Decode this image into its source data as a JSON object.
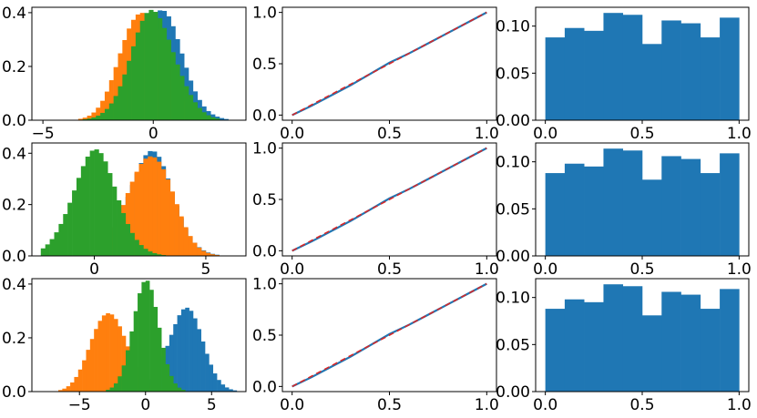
{
  "colors": {
    "blue": "#1f77b4",
    "orange": "#ff7f0e",
    "green": "#2ca02c",
    "red": "#d62728"
  },
  "chart_data": [
    {
      "type": "histogram",
      "row": 0,
      "col": 0,
      "xlim": [
        -5.5,
        4.2
      ],
      "ylim": [
        0,
        0.42
      ],
      "xticks": [
        -5,
        0
      ],
      "xticklabels": [
        "−5",
        "0"
      ],
      "yticks": [
        0,
        0.2,
        0.4
      ],
      "yticklabels": [
        "0.0",
        "0.2",
        "0.4"
      ],
      "bin_width": 0.2,
      "series": [
        {
          "color": "blue",
          "dist": "normal",
          "mean": 0.3,
          "sd": 1.0,
          "range": [
            -2.8,
            3.6
          ]
        },
        {
          "color": "orange",
          "dist": "normal",
          "mean": -0.5,
          "sd": 0.95,
          "range": [
            -3.6,
            2.4
          ]
        },
        {
          "color": "green",
          "dist": "normal",
          "mean": 0.0,
          "sd": 1.0,
          "range": [
            -3.2,
            3.0
          ]
        }
      ]
    },
    {
      "type": "line",
      "row": 0,
      "col": 1,
      "xlim": [
        -0.05,
        1.05
      ],
      "ylim": [
        -0.05,
        1.05
      ],
      "xticks": [
        0,
        0.5,
        1.0
      ],
      "xticklabels": [
        "0.0",
        "0.5",
        "1.0"
      ],
      "yticks": [
        0,
        0.5,
        1.0
      ],
      "yticklabels": [
        "0.0",
        "0.5",
        "1.0"
      ],
      "series": [
        {
          "color": "blue",
          "x": [
            0,
            0.1,
            0.2,
            0.3,
            0.4,
            0.5,
            0.6,
            0.7,
            0.8,
            0.9,
            1.0
          ],
          "y": [
            0,
            0.09,
            0.19,
            0.29,
            0.4,
            0.51,
            0.6,
            0.7,
            0.8,
            0.9,
            1.0
          ]
        },
        {
          "color": "red",
          "dashed": true,
          "x": [
            0,
            1
          ],
          "y": [
            0,
            1
          ]
        }
      ]
    },
    {
      "type": "bar",
      "row": 0,
      "col": 2,
      "xlim": [
        -0.05,
        1.05
      ],
      "ylim": [
        0,
        0.12
      ],
      "xticks": [
        0,
        0.5,
        1.0
      ],
      "xticklabels": [
        "0.0",
        "0.5",
        "1.0"
      ],
      "yticks": [
        0,
        0.05,
        0.1
      ],
      "yticklabels": [
        "0.00",
        "0.05",
        "0.10"
      ],
      "bin_edges": [
        0,
        0.1,
        0.2,
        0.3,
        0.4,
        0.5,
        0.6,
        0.7,
        0.8,
        0.9,
        1.0
      ],
      "values": [
        0.088,
        0.098,
        0.095,
        0.114,
        0.112,
        0.081,
        0.106,
        0.103,
        0.088,
        0.109
      ]
    },
    {
      "type": "histogram",
      "row": 1,
      "col": 0,
      "xlim": [
        -2.8,
        6.8
      ],
      "ylim": [
        0,
        0.44
      ],
      "xticks": [
        0,
        5
      ],
      "xticklabels": [
        "0",
        "5"
      ],
      "yticks": [
        0,
        0.2,
        0.4
      ],
      "yticklabels": [
        "0.0",
        "0.2",
        "0.4"
      ],
      "bin_width": 0.2,
      "series": [
        {
          "color": "blue",
          "dist": "normal",
          "mean": 2.5,
          "sd": 1.0,
          "range": [
            -0.6,
            5.8
          ]
        },
        {
          "color": "orange",
          "dist": "normal",
          "mean": 2.5,
          "sd": 0.98,
          "range": [
            -0.8,
            6.2
          ]
        },
        {
          "color": "green",
          "dist": "normal",
          "mean": 0.0,
          "sd": 1.0,
          "range": [
            -2.4,
            3.4
          ]
        }
      ]
    },
    {
      "type": "line",
      "row": 1,
      "col": 1,
      "xlim": [
        -0.05,
        1.05
      ],
      "ylim": [
        -0.05,
        1.05
      ],
      "xticks": [
        0,
        0.5,
        1.0
      ],
      "xticklabels": [
        "0.0",
        "0.5",
        "1.0"
      ],
      "yticks": [
        0,
        0.5,
        1.0
      ],
      "yticklabels": [
        "0.0",
        "0.5",
        "1.0"
      ],
      "series": [
        {
          "color": "blue",
          "x": [
            0,
            0.1,
            0.2,
            0.3,
            0.4,
            0.5,
            0.6,
            0.7,
            0.8,
            0.9,
            1.0
          ],
          "y": [
            0,
            0.09,
            0.19,
            0.29,
            0.4,
            0.51,
            0.6,
            0.7,
            0.8,
            0.9,
            1.0
          ]
        },
        {
          "color": "red",
          "dashed": true,
          "x": [
            0,
            1
          ],
          "y": [
            0,
            1
          ]
        }
      ]
    },
    {
      "type": "bar",
      "row": 1,
      "col": 2,
      "xlim": [
        -0.05,
        1.05
      ],
      "ylim": [
        0,
        0.12
      ],
      "xticks": [
        0,
        0.5,
        1.0
      ],
      "xticklabels": [
        "0.0",
        "0.5",
        "1.0"
      ],
      "yticks": [
        0,
        0.05,
        0.1
      ],
      "yticklabels": [
        "0.00",
        "0.05",
        "0.10"
      ],
      "bin_edges": [
        0,
        0.1,
        0.2,
        0.3,
        0.4,
        0.5,
        0.6,
        0.7,
        0.8,
        0.9,
        1.0
      ],
      "values": [
        0.088,
        0.098,
        0.095,
        0.114,
        0.112,
        0.081,
        0.106,
        0.103,
        0.088,
        0.109
      ]
    },
    {
      "type": "histogram",
      "row": 2,
      "col": 0,
      "xlim": [
        -8.6,
        7.6
      ],
      "ylim": [
        0,
        0.42
      ],
      "xticks": [
        -5,
        0,
        5
      ],
      "xticklabels": [
        "−5",
        "0",
        "5"
      ],
      "yticks": [
        0,
        0.2,
        0.4
      ],
      "yticklabels": [
        "0.0",
        "0.2",
        "0.4"
      ],
      "bin_width": 0.3,
      "series": [
        {
          "color": "blue",
          "dist": "normal",
          "mean": 3.0,
          "sd": 1.3,
          "range": [
            -1.4,
            6.9
          ]
        },
        {
          "color": "orange",
          "dist": "normal",
          "mean": -2.8,
          "sd": 1.3,
          "range": [
            -7.3,
            1.2
          ]
        },
        {
          "color": "green",
          "dist": "normal",
          "mean": 0.0,
          "sd": 1.0,
          "range": [
            -3.4,
            3.2
          ]
        }
      ]
    },
    {
      "type": "line",
      "row": 2,
      "col": 1,
      "xlim": [
        -0.05,
        1.05
      ],
      "ylim": [
        -0.05,
        1.05
      ],
      "xticks": [
        0,
        0.5,
        1.0
      ],
      "xticklabels": [
        "0.0",
        "0.5",
        "1.0"
      ],
      "yticks": [
        0,
        0.5,
        1.0
      ],
      "yticklabels": [
        "0.0",
        "0.5",
        "1.0"
      ],
      "series": [
        {
          "color": "blue",
          "x": [
            0,
            0.1,
            0.2,
            0.3,
            0.4,
            0.5,
            0.6,
            0.7,
            0.8,
            0.9,
            1.0
          ],
          "y": [
            0,
            0.09,
            0.19,
            0.29,
            0.4,
            0.51,
            0.6,
            0.7,
            0.8,
            0.9,
            1.0
          ]
        },
        {
          "color": "red",
          "dashed": true,
          "x": [
            0,
            1
          ],
          "y": [
            0,
            1
          ]
        }
      ]
    },
    {
      "type": "bar",
      "row": 2,
      "col": 2,
      "xlim": [
        -0.05,
        1.05
      ],
      "ylim": [
        0,
        0.12
      ],
      "xticks": [
        0,
        0.5,
        1.0
      ],
      "xticklabels": [
        "0.0",
        "0.5",
        "1.0"
      ],
      "yticks": [
        0,
        0.05,
        0.1
      ],
      "yticklabels": [
        "0.00",
        "0.05",
        "0.10"
      ],
      "bin_edges": [
        0,
        0.1,
        0.2,
        0.3,
        0.4,
        0.5,
        0.6,
        0.7,
        0.8,
        0.9,
        1.0
      ],
      "values": [
        0.088,
        0.098,
        0.095,
        0.114,
        0.112,
        0.081,
        0.106,
        0.103,
        0.088,
        0.109
      ]
    }
  ]
}
